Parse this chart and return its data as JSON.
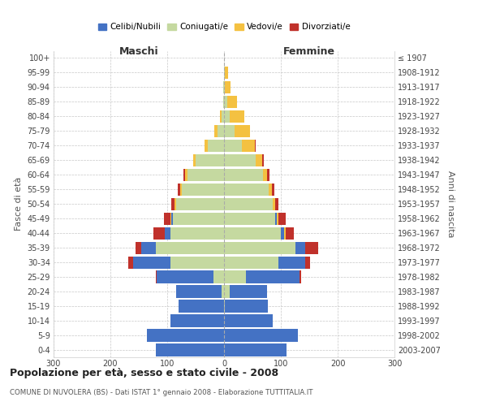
{
  "age_groups": [
    "0-4",
    "5-9",
    "10-14",
    "15-19",
    "20-24",
    "25-29",
    "30-34",
    "35-39",
    "40-44",
    "45-49",
    "50-54",
    "55-59",
    "60-64",
    "65-69",
    "70-74",
    "75-79",
    "80-84",
    "85-89",
    "90-94",
    "95-99",
    "100+"
  ],
  "birth_years": [
    "2003-2007",
    "1998-2002",
    "1993-1997",
    "1988-1992",
    "1983-1987",
    "1978-1982",
    "1973-1977",
    "1968-1972",
    "1963-1967",
    "1958-1962",
    "1953-1957",
    "1948-1952",
    "1943-1947",
    "1938-1942",
    "1933-1937",
    "1928-1932",
    "1923-1927",
    "1918-1922",
    "1913-1917",
    "1908-1912",
    "≤ 1907"
  ],
  "male": {
    "coniugati": [
      0,
      0,
      0,
      0,
      4,
      18,
      95,
      120,
      95,
      90,
      85,
      75,
      65,
      50,
      28,
      12,
      5,
      2,
      1,
      0,
      0
    ],
    "celibi": [
      120,
      135,
      95,
      80,
      80,
      100,
      65,
      25,
      10,
      3,
      0,
      0,
      0,
      0,
      0,
      0,
      0,
      0,
      0,
      0,
      0
    ],
    "vedovi": [
      0,
      0,
      0,
      0,
      0,
      0,
      0,
      0,
      0,
      1,
      2,
      2,
      3,
      4,
      6,
      5,
      2,
      0,
      0,
      0,
      0
    ],
    "divorziati": [
      0,
      0,
      0,
      0,
      0,
      2,
      8,
      10,
      20,
      12,
      6,
      5,
      4,
      0,
      0,
      0,
      0,
      0,
      0,
      0,
      0
    ]
  },
  "female": {
    "coniugate": [
      0,
      0,
      0,
      2,
      10,
      38,
      95,
      125,
      100,
      90,
      85,
      78,
      68,
      55,
      32,
      18,
      10,
      5,
      2,
      2,
      0
    ],
    "nubili": [
      110,
      130,
      85,
      75,
      65,
      95,
      48,
      18,
      6,
      3,
      0,
      0,
      0,
      0,
      0,
      0,
      0,
      0,
      0,
      0,
      0
    ],
    "vedove": [
      0,
      0,
      0,
      0,
      0,
      0,
      0,
      0,
      2,
      3,
      5,
      6,
      8,
      12,
      22,
      28,
      25,
      18,
      10,
      5,
      0
    ],
    "divorziate": [
      0,
      0,
      0,
      0,
      0,
      2,
      8,
      22,
      15,
      12,
      6,
      5,
      4,
      3,
      2,
      0,
      0,
      0,
      0,
      0,
      0
    ]
  },
  "colors": {
    "celibi": "#4472c4",
    "coniugati": "#c5d9a0",
    "vedovi": "#f4c141",
    "divorziati": "#c0312b"
  },
  "title": "Popolazione per età, sesso e stato civile - 2008",
  "subtitle": "COMUNE DI NUVOLERA (BS) - Dati ISTAT 1° gennaio 2008 - Elaborazione TUTTITALIA.IT",
  "xlabel_left": "Maschi",
  "xlabel_right": "Femmine",
  "ylabel_left": "Fasce di età",
  "ylabel_right": "Anni di nascita",
  "xlim": 300,
  "legend_labels": [
    "Celibi/Nubili",
    "Coniugati/e",
    "Vedovi/e",
    "Divorziati/e"
  ],
  "bg_color": "#ffffff",
  "grid_color": "#c8c8c8"
}
